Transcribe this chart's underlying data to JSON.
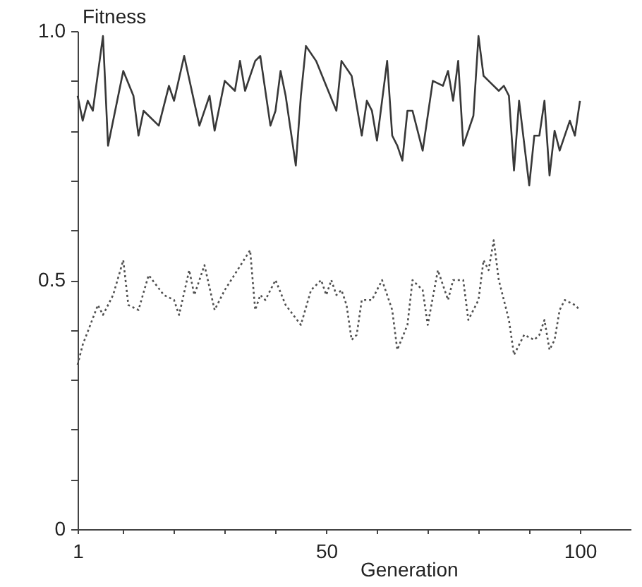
{
  "chart_data": {
    "type": "line",
    "xlabel": "Generation",
    "ylabel": "Fitness",
    "xlim": [
      1,
      110
    ],
    "ylim": [
      0,
      1.0
    ],
    "xticks": [
      1,
      {
        "value": 10,
        "label": null
      },
      {
        "value": 20,
        "label": null
      },
      {
        "value": 30,
        "label": null
      },
      {
        "value": 40,
        "label": null
      },
      50,
      {
        "value": 60,
        "label": null
      },
      {
        "value": 70,
        "label": null
      },
      {
        "value": 80,
        "label": null
      },
      {
        "value": 90,
        "label": null
      },
      100
    ],
    "yticks": [
      0,
      {
        "value": 0.1,
        "label": null
      },
      {
        "value": 0.2,
        "label": null
      },
      {
        "value": 0.3,
        "label": null
      },
      {
        "value": 0.4,
        "label": null
      },
      0.5,
      {
        "value": 0.6,
        "label": null
      },
      {
        "value": 0.7,
        "label": null
      },
      {
        "value": 0.8,
        "label": null
      },
      {
        "value": 0.9,
        "label": null
      },
      {
        "value": 1.0,
        "label": "1.0"
      }
    ],
    "grid": false,
    "series": [
      {
        "color": "#383838",
        "line_style": "solid",
        "x": [
          1,
          2,
          3,
          4,
          6,
          7,
          10,
          12,
          13,
          14,
          17,
          19,
          20,
          22,
          25,
          27,
          28,
          30,
          32,
          33,
          34,
          36,
          37,
          39,
          40,
          41,
          42,
          44,
          45,
          46,
          48,
          50,
          52,
          53,
          55,
          57,
          58,
          59,
          60,
          62,
          63,
          64,
          65,
          66,
          67,
          69,
          71,
          73,
          74,
          75,
          76,
          77,
          79,
          80,
          81,
          82,
          84,
          85,
          86,
          87,
          88,
          90,
          91,
          92,
          93,
          94,
          95,
          96,
          98,
          99,
          100
        ],
        "values": [
          0.87,
          0.82,
          0.86,
          0.84,
          0.99,
          0.77,
          0.92,
          0.87,
          0.79,
          0.84,
          0.81,
          0.89,
          0.86,
          0.95,
          0.81,
          0.87,
          0.8,
          0.9,
          0.88,
          0.94,
          0.88,
          0.94,
          0.95,
          0.81,
          0.84,
          0.92,
          0.87,
          0.73,
          0.87,
          0.97,
          0.94,
          0.89,
          0.84,
          0.94,
          0.91,
          0.79,
          0.86,
          0.84,
          0.78,
          0.94,
          0.79,
          0.77,
          0.74,
          0.84,
          0.84,
          0.76,
          0.9,
          0.89,
          0.92,
          0.86,
          0.94,
          0.77,
          0.83,
          0.99,
          0.91,
          0.9,
          0.88,
          0.89,
          0.87,
          0.72,
          0.86,
          0.69,
          0.79,
          0.79,
          0.86,
          0.71,
          0.8,
          0.76,
          0.82,
          0.79,
          0.86
        ]
      },
      {
        "color": "#505050",
        "line_style": "dotted",
        "x": [
          1,
          2,
          5,
          6,
          8,
          10,
          11,
          13,
          15,
          18,
          20,
          21,
          23,
          24,
          26,
          28,
          30,
          35,
          36,
          37,
          38,
          40,
          42,
          45,
          47,
          49,
          50,
          51,
          52,
          53,
          54,
          55,
          56,
          57,
          59,
          61,
          63,
          64,
          66,
          67,
          69,
          70,
          72,
          74,
          75,
          77,
          78,
          80,
          81,
          82,
          83,
          84,
          86,
          87,
          89,
          91,
          92,
          93,
          94,
          95,
          96,
          97,
          99,
          100
        ],
        "values": [
          0.33,
          0.37,
          0.45,
          0.43,
          0.47,
          0.54,
          0.45,
          0.44,
          0.51,
          0.47,
          0.46,
          0.43,
          0.52,
          0.47,
          0.53,
          0.44,
          0.48,
          0.56,
          0.44,
          0.47,
          0.46,
          0.5,
          0.45,
          0.41,
          0.48,
          0.5,
          0.47,
          0.5,
          0.47,
          0.48,
          0.45,
          0.38,
          0.39,
          0.46,
          0.46,
          0.5,
          0.44,
          0.36,
          0.41,
          0.5,
          0.48,
          0.41,
          0.52,
          0.46,
          0.5,
          0.5,
          0.42,
          0.46,
          0.54,
          0.52,
          0.58,
          0.5,
          0.42,
          0.35,
          0.39,
          0.38,
          0.39,
          0.42,
          0.36,
          0.38,
          0.44,
          0.46,
          0.45,
          0.44
        ]
      }
    ]
  }
}
